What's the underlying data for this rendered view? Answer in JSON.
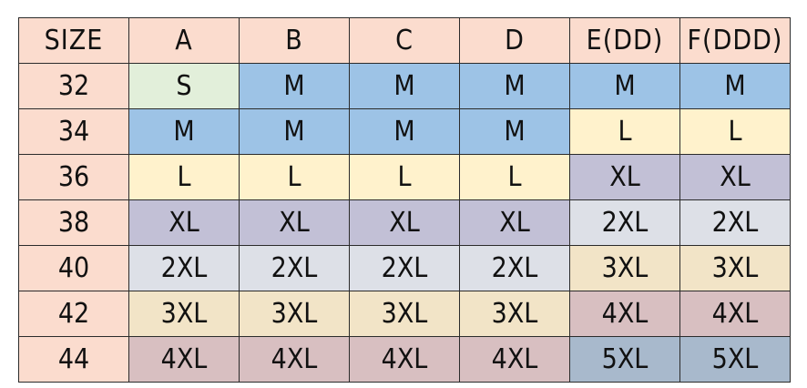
{
  "header": {
    "corner_label": "SIZE",
    "cup_labels": [
      "A",
      "B",
      "C",
      "D",
      "E(DD)",
      "F(DDD)"
    ]
  },
  "rows": [
    {
      "band": "32",
      "cells": [
        "S",
        "M",
        "M",
        "M",
        "M",
        "M"
      ]
    },
    {
      "band": "34",
      "cells": [
        "M",
        "M",
        "M",
        "M",
        "L",
        "L"
      ]
    },
    {
      "band": "36",
      "cells": [
        "L",
        "L",
        "L",
        "L",
        "XL",
        "XL"
      ]
    },
    {
      "band": "38",
      "cells": [
        "XL",
        "XL",
        "XL",
        "XL",
        "2XL",
        "2XL"
      ]
    },
    {
      "band": "40",
      "cells": [
        "2XL",
        "2XL",
        "2XL",
        "2XL",
        "3XL",
        "3XL"
      ]
    },
    {
      "band": "42",
      "cells": [
        "3XL",
        "3XL",
        "3XL",
        "3XL",
        "4XL",
        "4XL"
      ]
    },
    {
      "band": "44",
      "cells": [
        "4XL",
        "4XL",
        "4XL",
        "4XL",
        "5XL",
        "5XL"
      ]
    }
  ],
  "colors": {
    "header_bg": "#fbdcce",
    "band_bg": "#fbdcce",
    "S": "#e2efda",
    "M": "#9dc3e6",
    "L": "#fff2cc",
    "XL": "#c2c0d6",
    "2XL": "#dde0e7",
    "3XL": "#f2e4c7",
    "4XL": "#d8bfc1",
    "5XL": "#a8b9cc",
    "border": "#2b2b2b",
    "text": "#111111"
  }
}
